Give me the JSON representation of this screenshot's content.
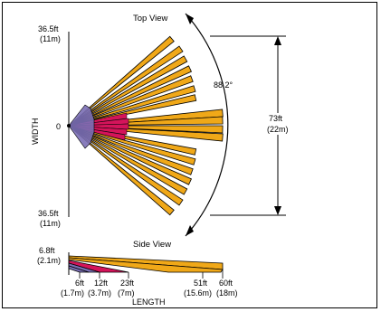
{
  "top_view": {
    "title": "Top View",
    "width_label": "WIDTH",
    "width_top": "36.5ft",
    "width_top_m": "(11m)",
    "width_bottom": "36.5ft",
    "width_bottom_m": "(11m)",
    "center_label": "0",
    "angle_label": "88.2°",
    "span_label": "73ft",
    "span_label_m": "(22m)"
  },
  "side_view": {
    "title": "Side View",
    "height_label": "6.8ft",
    "height_label_m": "(2.1m)",
    "length_label": "LENGTH",
    "distances": [
      {
        "ft": "6ft",
        "m": "(1.7m)"
      },
      {
        "ft": "12ft",
        "m": "(3.7m)"
      },
      {
        "ft": "23ft",
        "m": "(7m)"
      },
      {
        "ft": "51ft",
        "m": "(15.6m)"
      },
      {
        "ft": "60ft",
        "m": "(18m)"
      }
    ]
  },
  "colors": {
    "long_zone": "#f0a818",
    "mid_zone": "#d4145a",
    "near_zone": "#7b6fb5",
    "outline": "#000000"
  }
}
